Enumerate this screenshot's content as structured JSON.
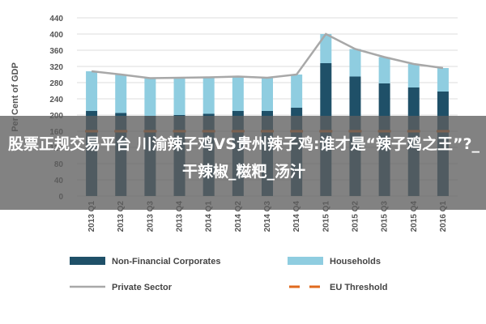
{
  "chart_data": {
    "type": "bar",
    "ylabel": "Per Cent of GDP",
    "ylim": [
      0,
      440
    ],
    "yticks": [
      0,
      40,
      80,
      120,
      160,
      200,
      240,
      280,
      320,
      360,
      400,
      440
    ],
    "categories": [
      "2013 Q1",
      "2013 Q2",
      "2013 Q3",
      "2013 Q4",
      "2014 Q1",
      "2014 Q2",
      "2014 Q3",
      "2014 Q4",
      "2015 Q1",
      "2015 Q2",
      "2015 Q3",
      "2015 Q4",
      "2016 Q1"
    ],
    "series": [
      {
        "name": "Non-Financial Corporates",
        "kind": "bar",
        "color": "#1f5068",
        "values": [
          210,
          205,
          198,
          200,
          203,
          210,
          210,
          218,
          328,
          295,
          278,
          268,
          258
        ]
      },
      {
        "name": "Households",
        "kind": "bar",
        "color": "#8fcde0",
        "values": [
          98,
          95,
          93,
          92,
          90,
          85,
          82,
          82,
          72,
          68,
          65,
          58,
          58
        ]
      },
      {
        "name": "Private Sector",
        "kind": "line",
        "color": "#a8a8a8",
        "values": [
          308,
          300,
          291,
          292,
          293,
          295,
          292,
          300,
          400,
          363,
          343,
          326,
          316
        ]
      },
      {
        "name": "EU Threshold",
        "kind": "dashed",
        "color": "#e06a1e",
        "values": [
          160,
          160,
          160,
          160,
          160,
          160,
          160,
          160,
          160,
          160,
          160,
          160,
          160
        ]
      }
    ],
    "legend_position": "bottom"
  },
  "overlay_caption": "股票正规交易平台 川渝辣子鸡VS贵州辣子鸡:谁才是“辣子鸡之王”?_干辣椒_糍粑_汤汁"
}
